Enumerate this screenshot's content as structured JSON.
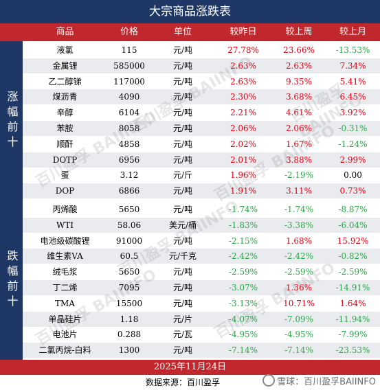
{
  "title": "大宗商品涨跌表",
  "headers": {
    "name": "商品",
    "price": "价格",
    "unit": "单位",
    "day": "较昨日",
    "week": "较上周",
    "month": "较上月"
  },
  "groups": [
    {
      "label": "涨幅前十",
      "rows": [
        {
          "name": "液氯",
          "price": "115",
          "unit": "元/吨",
          "day": "27.78%",
          "week": "23.66%",
          "month": "-13.53%"
        },
        {
          "name": "金属锂",
          "price": "585000",
          "unit": "元/吨",
          "day": "2.63%",
          "week": "2.63%",
          "month": "7.34%"
        },
        {
          "name": "乙二醇锑",
          "price": "117000",
          "unit": "元/吨",
          "day": "2.63%",
          "week": "9.35%",
          "month": "5.41%"
        },
        {
          "name": "煤沥青",
          "price": "4090",
          "unit": "元/吨",
          "day": "2.30%",
          "week": "3.68%",
          "month": "6.45%"
        },
        {
          "name": "辛醇",
          "price": "6104",
          "unit": "元/吨",
          "day": "2.21%",
          "week": "4.61%",
          "month": "3.92%"
        },
        {
          "name": "苯胺",
          "price": "8058",
          "unit": "元/吨",
          "day": "2.06%",
          "week": "2.06%",
          "month": "-0.31%"
        },
        {
          "name": "顺酐",
          "price": "4858",
          "unit": "元/吨",
          "day": "2.02%",
          "week": "1.67%",
          "month": "-1.24%"
        },
        {
          "name": "DOTP",
          "price": "6956",
          "unit": "元/吨",
          "day": "2.01%",
          "week": "3.88%",
          "month": "2.99%"
        },
        {
          "name": "蛋",
          "price": "3.12",
          "unit": "元/斤",
          "day": "1.96%",
          "week": "-2.19%",
          "month": "0.00"
        },
        {
          "name": "DOP",
          "price": "6866",
          "unit": "元/吨",
          "day": "1.91%",
          "week": "3.11%",
          "month": "0.73%"
        }
      ]
    },
    {
      "label": "跌幅前十",
      "rows": [
        {
          "name": "丙烯酸",
          "price": "5650",
          "unit": "元/吨",
          "day": "-1.74%",
          "week": "-1.74%",
          "month": "-8.87%"
        },
        {
          "name": "WTI",
          "price": "58.06",
          "unit": "美元/桶",
          "day": "-1.83%",
          "week": "-3.38%",
          "month": "-6.04%"
        },
        {
          "name": "电池级碳酸锂",
          "price": "91000",
          "unit": "元/吨",
          "day": "-2.15%",
          "week": "1.68%",
          "month": "15.92%"
        },
        {
          "name": "维生素VA",
          "price": "60.5",
          "unit": "元/千克",
          "day": "-2.42%",
          "week": "-2.42%",
          "month": "-0.82%"
        },
        {
          "name": "绒毛浆",
          "price": "5650",
          "unit": "元/吨",
          "day": "-2.59%",
          "week": "-2.59%",
          "month": "-2.59%"
        },
        {
          "name": "丁二烯",
          "price": "7095",
          "unit": "元/吨",
          "day": "-3.07%",
          "week": "1.36%",
          "month": "-14.91%"
        },
        {
          "name": "TMA",
          "price": "15500",
          "unit": "元/吨",
          "day": "-3.13%",
          "week": "10.71%",
          "month": "1.64%"
        },
        {
          "name": "单晶硅片",
          "price": "1.18",
          "unit": "元/片",
          "day": "-4.07%",
          "week": "-7.09%",
          "month": "-11.94%"
        },
        {
          "name": "电池片",
          "price": "0.288",
          "unit": "元/瓦",
          "day": "-4.95%",
          "week": "-4.95%",
          "month": "-7.99%"
        },
        {
          "name": "二氯丙烷-白料",
          "price": "1300",
          "unit": "元/吨",
          "day": "-7.14%",
          "week": "-7.14%",
          "month": "-23.53%"
        }
      ]
    }
  ],
  "footer": {
    "date": "2025年11月24日",
    "source": "数据来源：百川盈孚"
  },
  "watermark": {
    "text": "雪球：百川盈孚BAIINFO",
    "overlay": "百川盈孚 BAIINFO"
  },
  "colors": {
    "navy": "#1f3764",
    "red": "#c0282d",
    "up": "#e60012",
    "down": "#2aa847"
  }
}
